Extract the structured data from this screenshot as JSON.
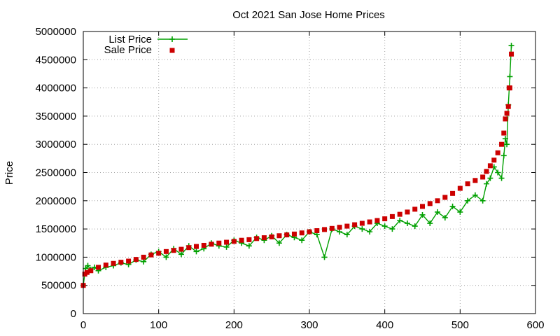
{
  "chart_data": {
    "type": "line",
    "title": "Oct 2021 San Jose Home Prices",
    "xlabel": "",
    "ylabel": "Price",
    "xlim": [
      0,
      600
    ],
    "ylim": [
      0,
      5000000
    ],
    "xticks": [
      "0",
      "100",
      "200",
      "300",
      "400",
      "500",
      "600"
    ],
    "yticks": [
      "0",
      "500000",
      "1000000",
      "1500000",
      "2000000",
      "2500000",
      "3000000",
      "3500000",
      "4000000",
      "4500000",
      "5000000"
    ],
    "grid": true,
    "legend_position": "top-left",
    "series": [
      {
        "name": "List Price",
        "style": "line+cross",
        "color": "#00a000",
        "x": [
          0,
          3,
          6,
          10,
          15,
          20,
          30,
          40,
          50,
          60,
          70,
          80,
          90,
          100,
          110,
          120,
          130,
          140,
          150,
          160,
          170,
          180,
          190,
          200,
          210,
          220,
          230,
          240,
          250,
          260,
          270,
          280,
          290,
          300,
          310,
          320,
          330,
          340,
          350,
          360,
          370,
          380,
          390,
          400,
          410,
          420,
          430,
          440,
          450,
          460,
          470,
          480,
          490,
          500,
          510,
          520,
          530,
          535,
          540,
          545,
          550,
          555,
          558,
          560,
          562,
          564,
          566,
          568
        ],
        "y": [
          500000,
          800000,
          850000,
          780000,
          820000,
          760000,
          820000,
          850000,
          900000,
          870000,
          950000,
          920000,
          1050000,
          1100000,
          1000000,
          1150000,
          1050000,
          1200000,
          1100000,
          1150000,
          1250000,
          1200000,
          1180000,
          1300000,
          1250000,
          1200000,
          1350000,
          1300000,
          1380000,
          1250000,
          1400000,
          1350000,
          1300000,
          1450000,
          1400000,
          1000000,
          1500000,
          1450000,
          1400000,
          1550000,
          1500000,
          1450000,
          1600000,
          1550000,
          1500000,
          1650000,
          1600000,
          1550000,
          1750000,
          1600000,
          1800000,
          1700000,
          1900000,
          1800000,
          2000000,
          2100000,
          2000000,
          2300000,
          2400000,
          2600000,
          2500000,
          2400000,
          2800000,
          3100000,
          3000000,
          3700000,
          4200000,
          4750000
        ]
      },
      {
        "name": "Sale Price",
        "style": "squares",
        "color": "#cc0000",
        "x": [
          0,
          2,
          5,
          10,
          20,
          30,
          40,
          50,
          60,
          70,
          80,
          90,
          100,
          110,
          120,
          130,
          140,
          150,
          160,
          170,
          180,
          190,
          200,
          210,
          220,
          230,
          240,
          250,
          260,
          270,
          280,
          290,
          300,
          310,
          320,
          330,
          340,
          350,
          360,
          370,
          380,
          390,
          400,
          410,
          420,
          430,
          440,
          450,
          460,
          470,
          480,
          490,
          500,
          510,
          520,
          530,
          535,
          540,
          545,
          550,
          555,
          558,
          560,
          562,
          564,
          565,
          566,
          568
        ],
        "y": [
          500000,
          700000,
          730000,
          760000,
          820000,
          860000,
          890000,
          910000,
          930000,
          960000,
          1000000,
          1040000,
          1070000,
          1100000,
          1120000,
          1140000,
          1170000,
          1190000,
          1210000,
          1230000,
          1250000,
          1265000,
          1280000,
          1300000,
          1310000,
          1330000,
          1345000,
          1360000,
          1380000,
          1395000,
          1410000,
          1430000,
          1450000,
          1470000,
          1490000,
          1510000,
          1530000,
          1550000,
          1575000,
          1600000,
          1625000,
          1650000,
          1680000,
          1720000,
          1760000,
          1800000,
          1850000,
          1900000,
          1950000,
          2000000,
          2060000,
          2130000,
          2220000,
          2300000,
          2360000,
          2420000,
          2520000,
          2620000,
          2720000,
          2850000,
          3000000,
          3200000,
          3450000,
          3550000,
          3670000,
          4000000,
          4000000,
          4600000
        ]
      }
    ]
  }
}
